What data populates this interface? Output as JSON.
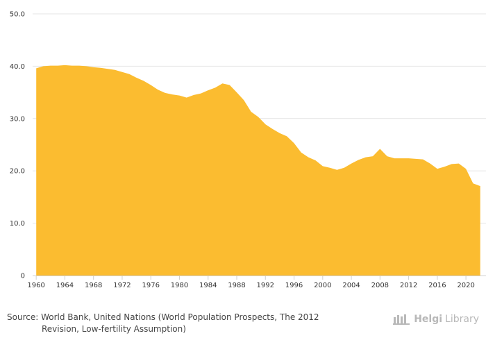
{
  "chart_data": {
    "type": "area",
    "title": "",
    "xlabel": "",
    "ylabel": "",
    "x": [
      1960,
      1961,
      1962,
      1963,
      1964,
      1965,
      1966,
      1967,
      1968,
      1969,
      1970,
      1971,
      1972,
      1973,
      1974,
      1975,
      1976,
      1977,
      1978,
      1979,
      1980,
      1981,
      1982,
      1983,
      1984,
      1985,
      1986,
      1987,
      1988,
      1989,
      1990,
      1991,
      1992,
      1993,
      1994,
      1995,
      1996,
      1997,
      1998,
      1999,
      2000,
      2001,
      2002,
      2003,
      2004,
      2005,
      2006,
      2007,
      2008,
      2009,
      2010,
      2011,
      2012,
      2013,
      2014,
      2015,
      2016,
      2017,
      2018,
      2019,
      2020,
      2021,
      2022
    ],
    "values": [
      39.6,
      40.0,
      40.1,
      40.1,
      40.2,
      40.1,
      40.1,
      40.0,
      39.8,
      39.7,
      39.5,
      39.3,
      38.9,
      38.5,
      37.8,
      37.2,
      36.4,
      35.5,
      34.9,
      34.6,
      34.4,
      34.0,
      34.5,
      34.8,
      35.4,
      35.9,
      36.7,
      36.4,
      35.0,
      33.5,
      31.3,
      30.3,
      28.9,
      28.0,
      27.2,
      26.6,
      25.3,
      23.5,
      22.6,
      22.0,
      20.9,
      20.6,
      20.2,
      20.6,
      21.4,
      22.1,
      22.6,
      22.8,
      24.2,
      22.8,
      22.4,
      22.4,
      22.4,
      22.3,
      22.2,
      21.4,
      20.4,
      20.8,
      21.3,
      21.4,
      20.4,
      17.6,
      17.1
    ],
    "xlim": [
      1959.5,
      2022.8
    ],
    "ylim": [
      0,
      50
    ],
    "xticks": [
      "1960",
      "1964",
      "1968",
      "1972",
      "1976",
      "1980",
      "1984",
      "1988",
      "1992",
      "1996",
      "2000",
      "2004",
      "2008",
      "2012",
      "2016",
      "2020"
    ],
    "yticks": [
      "0",
      "10.0",
      "20.0",
      "30.0",
      "40.0",
      "50.0"
    ],
    "grid": true,
    "legend": "none"
  },
  "colors": {
    "area": "#fbbc30",
    "grid": "#e4e4e4",
    "axis": "#cfcfcf",
    "text": "#333333",
    "footer": "#444444",
    "brand": "#b8b8b8"
  },
  "footer": {
    "source_line1": "Source: World Bank, United Nations (World Population Prospects, The 2012",
    "source_line2": "Revision, Low-fertility Assumption)"
  },
  "brand": {
    "icon": "helgi-library-logo-icon",
    "name_bold": "Helgi",
    "name_light": "Library"
  }
}
